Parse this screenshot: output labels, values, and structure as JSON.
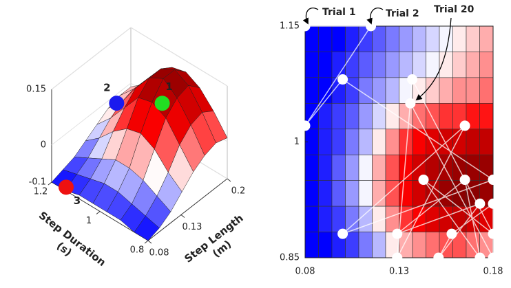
{
  "chart_data": [
    {
      "type": "surface",
      "xlabel": [
        "Step Length",
        "(m)"
      ],
      "ylabel": [
        "Step Duration",
        "(s)"
      ],
      "xlim": [
        0.08,
        0.2
      ],
      "xticks": [
        0.08,
        0.13,
        0.2
      ],
      "ylim": [
        0.8,
        1.2
      ],
      "yticks": [
        0.8,
        1,
        1.2
      ],
      "zlim": [
        -0.1,
        0.15
      ],
      "zticks": [
        -0.1,
        0,
        0.15
      ],
      "clim": [
        -0.1,
        0.15
      ],
      "colormap": [
        "#0000ff",
        "#ffffff",
        "#ff0000",
        "#8b0000"
      ],
      "x": [
        0.08,
        0.0971,
        0.1143,
        0.1314,
        0.1486,
        0.1657,
        0.1829,
        0.2
      ],
      "y": [
        0.8,
        0.8571,
        0.9143,
        0.9714,
        1.0286,
        1.0857,
        1.1429,
        1.2
      ],
      "z": [
        [
          -0.1,
          -0.09,
          -0.07,
          -0.04,
          -0.01,
          0.01,
          0.02,
          0.01
        ],
        [
          -0.1,
          -0.08,
          -0.05,
          -0.01,
          0.04,
          0.07,
          0.08,
          0.06
        ],
        [
          -0.09,
          -0.07,
          -0.03,
          0.03,
          0.09,
          0.12,
          0.13,
          0.1
        ],
        [
          -0.09,
          -0.06,
          -0.02,
          0.05,
          0.11,
          0.15,
          0.15,
          0.12
        ],
        [
          -0.09,
          -0.06,
          -0.02,
          0.04,
          0.1,
          0.13,
          0.13,
          0.11
        ],
        [
          -0.09,
          -0.07,
          -0.04,
          0.01,
          0.05,
          0.08,
          0.08,
          0.07
        ],
        [
          -0.1,
          -0.08,
          -0.06,
          -0.03,
          0,
          0.02,
          0.03,
          0.02
        ],
        [
          -0.1,
          -0.09,
          -0.08,
          -0.06,
          -0.04,
          -0.02,
          -0.01,
          -0.01
        ]
      ],
      "markers": [
        {
          "label": "1",
          "color": "#22dd22",
          "x": 0.138,
          "y": 0.9,
          "z": 0.15
        },
        {
          "label": "2",
          "color": "#1a1aee",
          "x": 0.116,
          "y": 1.029,
          "z": 0.13
        },
        {
          "label": "3",
          "color": "#ee1111",
          "x": 0.08,
          "y": 1.14,
          "z": -0.09
        }
      ]
    },
    {
      "type": "heatmap",
      "xlim": [
        0.08,
        0.18
      ],
      "xticks": [
        0.08,
        0.13,
        0.18
      ],
      "ylim": [
        0.85,
        1.15
      ],
      "yticks": [
        0.85,
        1,
        1.15
      ],
      "clim": [
        -0.1,
        0.15
      ],
      "colormap": [
        "#0000ff",
        "#ffffff",
        "#ff0000",
        "#8b0000"
      ],
      "z": [
        [
          -0.1,
          -0.1,
          -0.1,
          -0.09,
          -0.08,
          -0.07,
          -0.06,
          -0.05,
          -0.04,
          -0.03,
          -0.02,
          -0.01,
          0,
          0.01
        ],
        [
          -0.1,
          -0.1,
          -0.09,
          -0.08,
          -0.07,
          -0.06,
          -0.05,
          -0.04,
          -0.03,
          -0.02,
          -0.01,
          0,
          0.01,
          0.02
        ],
        [
          -0.1,
          -0.1,
          -0.09,
          -0.08,
          -0.06,
          -0.05,
          -0.04,
          -0.02,
          -0.01,
          0,
          0.01,
          0.02,
          0.02,
          0.03
        ],
        [
          -0.1,
          -0.09,
          -0.08,
          -0.07,
          -0.05,
          -0.03,
          -0.01,
          0.01,
          0.03,
          0.04,
          0.05,
          0.05,
          0.06,
          0.06
        ],
        [
          -0.1,
          -0.09,
          -0.08,
          -0.06,
          -0.04,
          -0.01,
          0.02,
          0.05,
          0.07,
          0.09,
          0.1,
          0.1,
          0.11,
          0.11
        ],
        [
          -0.1,
          -0.09,
          -0.07,
          -0.05,
          -0.02,
          0.01,
          0.04,
          0.07,
          0.1,
          0.12,
          0.13,
          0.14,
          0.14,
          0.14
        ],
        [
          -0.1,
          -0.09,
          -0.07,
          -0.05,
          -0.02,
          0.01,
          0.04,
          0.07,
          0.1,
          0.12,
          0.14,
          0.15,
          0.15,
          0.14
        ],
        [
          -0.1,
          -0.09,
          -0.08,
          -0.06,
          -0.04,
          -0.01,
          0.02,
          0.05,
          0.07,
          0.09,
          0.1,
          0.11,
          0.1,
          0.09
        ],
        [
          -0.1,
          -0.1,
          -0.09,
          -0.08,
          -0.06,
          -0.04,
          -0.01,
          0.01,
          0.02,
          0.03,
          0.04,
          0.04,
          0.03,
          0.02
        ]
      ],
      "trials": {
        "x": [
          0.08,
          0.115,
          0.08,
          0.1,
          0.18,
          0.1,
          0.165,
          0.129,
          0.137,
          0.18,
          0.143,
          0.173,
          0.165,
          0.129,
          0.173,
          0.151,
          0.158,
          0.18,
          0.18,
          0.136
        ],
        "y": [
          1.15,
          1.15,
          1.021,
          1.081,
          0.951,
          0.881,
          1.021,
          0.85,
          1.081,
          0.881,
          0.951,
          0.85,
          0.951,
          0.881,
          0.92,
          0.85,
          0.881,
          0.92,
          0.85,
          1.05
        ]
      },
      "annotations": [
        "Trial 1",
        "Trial 2",
        "Trial 20"
      ]
    }
  ]
}
